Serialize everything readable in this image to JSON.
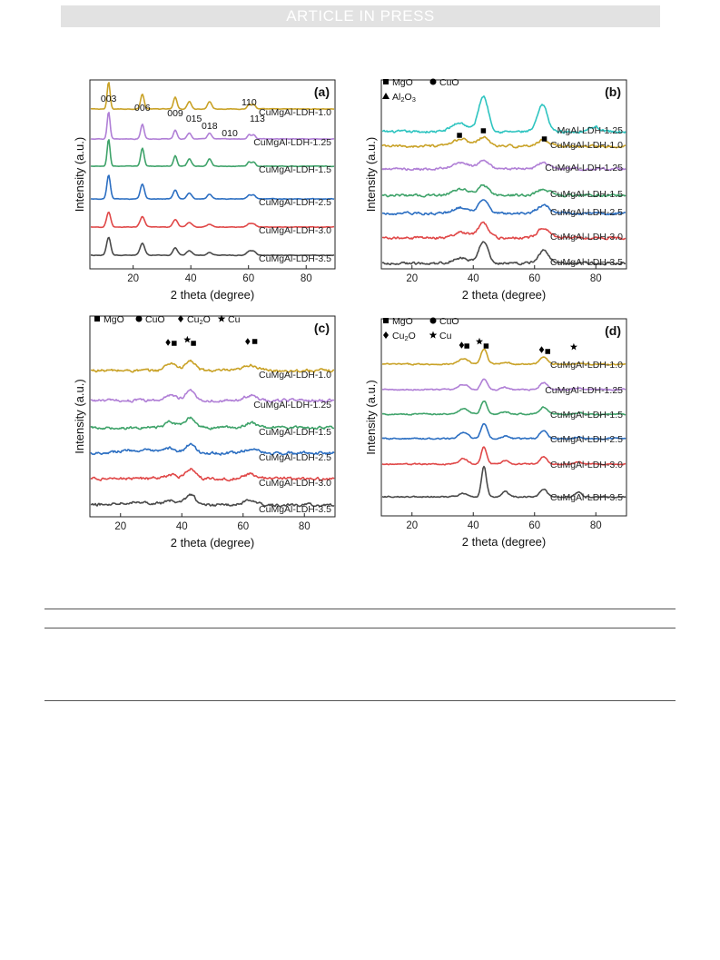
{
  "header": {
    "banner": "ARTICLE IN PRESS"
  },
  "colors": {
    "MgAl-LDH-1.25": "#2ec4c0",
    "CuMgAl-LDH-1.0": "#c9a227",
    "CuMgAl-LDH-1.25": "#b07fd6",
    "CuMgAl-LDH-1.5": "#3fa36a",
    "CuMgAl-LDH-2.5": "#2c6fc2",
    "CuMgAl-LDH-3.0": "#e04848",
    "CuMgAl-LDH-3.5": "#4a4a4a"
  },
  "chart_data": [
    {
      "type": "line",
      "panel_label": "(a)",
      "xlabel": "2 theta (degree)",
      "ylabel": "Intensity (a.u.)",
      "xlim": [
        5,
        90
      ],
      "xticks": [
        20,
        40,
        60,
        80
      ],
      "legend": [],
      "annotations": [
        {
          "text": "003",
          "x": 11.5
        },
        {
          "text": "006",
          "x": 23.2
        },
        {
          "text": "009",
          "x": 34.6
        },
        {
          "text": "015",
          "x": 39.5
        },
        {
          "text": "018",
          "x": 46.5
        },
        {
          "text": "010",
          "x": 53.5
        },
        {
          "text": "110",
          "x": 60.2
        },
        {
          "text": "113",
          "x": 61.8
        }
      ],
      "series": [
        {
          "name": "CuMgAl-LDH-1.0",
          "peaks": [
            [
              11.5,
              9,
              0.5
            ],
            [
              23.2,
              5,
              0.6
            ],
            [
              34.6,
              4,
              0.6
            ],
            [
              39.5,
              2.5,
              0.7
            ],
            [
              46.5,
              2.5,
              0.7
            ],
            [
              60.2,
              1.6,
              0.6
            ],
            [
              61.8,
              1.6,
              0.6
            ]
          ]
        },
        {
          "name": "CuMgAl-LDH-1.25",
          "peaks": [
            [
              11.5,
              9,
              0.5
            ],
            [
              23.2,
              5,
              0.6
            ],
            [
              34.6,
              3,
              0.6
            ],
            [
              39.5,
              2,
              0.7
            ],
            [
              46.5,
              2,
              0.7
            ],
            [
              60.2,
              1.4,
              0.6
            ],
            [
              61.8,
              1.4,
              0.6
            ]
          ]
        },
        {
          "name": "CuMgAl-LDH-1.5",
          "peaks": [
            [
              11.5,
              9,
              0.5
            ],
            [
              23.2,
              6,
              0.6
            ],
            [
              34.6,
              3.5,
              0.6
            ],
            [
              39.5,
              2.5,
              0.7
            ],
            [
              46.5,
              2.5,
              0.7
            ],
            [
              60.2,
              1.4,
              0.6
            ],
            [
              61.8,
              1.4,
              0.6
            ]
          ]
        },
        {
          "name": "CuMgAl-LDH-2.5",
          "peaks": [
            [
              11.5,
              8,
              0.6
            ],
            [
              23.2,
              5,
              0.7
            ],
            [
              34.6,
              3,
              0.7
            ],
            [
              39.5,
              2,
              0.8
            ],
            [
              46.5,
              1.5,
              0.8
            ],
            [
              60.2,
              1.2,
              0.7
            ],
            [
              61.8,
              1.2,
              0.7
            ]
          ]
        },
        {
          "name": "CuMgAl-LDH-3.0",
          "peaks": [
            [
              11.5,
              5,
              0.7
            ],
            [
              23.2,
              3.5,
              0.8
            ],
            [
              34.6,
              2.5,
              0.8
            ],
            [
              39.5,
              1.5,
              0.9
            ],
            [
              46.5,
              1,
              0.9
            ],
            [
              60.2,
              1,
              0.8
            ],
            [
              61.8,
              1,
              0.8
            ]
          ]
        },
        {
          "name": "CuMgAl-LDH-3.5",
          "peaks": [
            [
              11.5,
              6,
              0.7
            ],
            [
              23.2,
              4,
              0.8
            ],
            [
              34.6,
              2.5,
              0.8
            ],
            [
              39.5,
              1.5,
              0.9
            ],
            [
              46.5,
              1,
              0.9
            ],
            [
              60.2,
              1.2,
              0.8
            ],
            [
              61.8,
              1.2,
              0.8
            ]
          ]
        }
      ]
    },
    {
      "type": "line",
      "panel_label": "(b)",
      "xlabel": "2 theta (degree)",
      "ylabel": "Intensity (a.u.)",
      "xlim": [
        10,
        90
      ],
      "xticks": [
        20,
        40,
        60,
        80
      ],
      "legend": [
        {
          "symbol": "square",
          "label": "MgO"
        },
        {
          "symbol": "circle",
          "label": "CuO"
        },
        {
          "symbol": "triangle",
          "label": "Al2O3"
        }
      ],
      "markers": [
        {
          "symbol": "square",
          "x": 35.5
        },
        {
          "symbol": "square",
          "x": 43.3
        },
        {
          "symbol": "square",
          "x": 63.2
        }
      ],
      "series": [
        {
          "name": "MgAl-LDH-1.25",
          "peaks": [
            [
              35.5,
              1.5,
              2.5
            ],
            [
              43.3,
              6,
              1.6
            ],
            [
              62.6,
              4.5,
              1.6
            ],
            [
              79.5,
              0.8,
              2.0
            ]
          ]
        },
        {
          "name": "CuMgAl-LDH-1.0",
          "peaks": [
            [
              36,
              1.2,
              2.5
            ],
            [
              43.3,
              1.5,
              1.8
            ],
            [
              63,
              1.1,
              2.0
            ]
          ]
        },
        {
          "name": "CuMgAl-LDH-1.25",
          "peaks": [
            [
              36,
              1,
              2.5
            ],
            [
              43.3,
              1.4,
              1.8
            ],
            [
              63,
              1.0,
              2.0
            ]
          ]
        },
        {
          "name": "CuMgAl-LDH-1.5",
          "peaks": [
            [
              36,
              1,
              2.5
            ],
            [
              43.3,
              1.6,
              1.8
            ],
            [
              63,
              1.1,
              2.0
            ]
          ]
        },
        {
          "name": "CuMgAl-LDH-2.5",
          "peaks": [
            [
              36,
              1,
              2.5
            ],
            [
              43.3,
              2.2,
              1.7
            ],
            [
              63,
              1.5,
              1.9
            ]
          ]
        },
        {
          "name": "CuMgAl-LDH-3.0",
          "peaks": [
            [
              36,
              1,
              2.5
            ],
            [
              43.3,
              2.5,
              1.7
            ],
            [
              63,
              1.8,
              1.9
            ]
          ]
        },
        {
          "name": "CuMgAl-LDH-3.5",
          "peaks": [
            [
              36,
              1,
              2.5
            ],
            [
              43.3,
              3.5,
              1.6
            ],
            [
              63,
              2.2,
              1.8
            ]
          ]
        }
      ]
    },
    {
      "type": "line",
      "panel_label": "(c)",
      "xlabel": "2 theta (degree)",
      "ylabel": "Intensity (a.u.)",
      "xlim": [
        10,
        90
      ],
      "xticks": [
        20,
        40,
        60,
        80
      ],
      "legend": [
        {
          "symbol": "square",
          "label": "MgO"
        },
        {
          "symbol": "circle",
          "label": "CuO"
        },
        {
          "symbol": "diamond",
          "label": "Cu2O"
        },
        {
          "symbol": "star",
          "label": "Cu"
        }
      ],
      "markers": [
        {
          "symbol": "diamond",
          "x": 35.5
        },
        {
          "symbol": "square",
          "x": 37.5
        },
        {
          "symbol": "star",
          "x": 41.8
        },
        {
          "symbol": "square",
          "x": 43.8
        },
        {
          "symbol": "diamond",
          "x": 61.5
        },
        {
          "symbol": "square",
          "x": 63.8
        }
      ],
      "series": [
        {
          "name": "CuMgAl-LDH-1.0",
          "peaks": [
            [
              36.5,
              2,
              1.8
            ],
            [
              42.8,
              2.5,
              1.6
            ],
            [
              62.5,
              1.5,
              2.0
            ]
          ]
        },
        {
          "name": "CuMgAl-LDH-1.25",
          "peaks": [
            [
              36.5,
              1.5,
              1.8
            ],
            [
              42.8,
              2.5,
              1.6
            ],
            [
              62.5,
              1.3,
              2.0
            ]
          ]
        },
        {
          "name": "CuMgAl-LDH-1.5",
          "peaks": [
            [
              36.5,
              1.5,
              1.8
            ],
            [
              42.8,
              2.5,
              1.6
            ],
            [
              62.5,
              1.3,
              2.0
            ]
          ]
        },
        {
          "name": "CuMgAl-LDH-2.5",
          "peaks": [
            [
              36.5,
              1.2,
              1.8
            ],
            [
              42.8,
              2.2,
              1.6
            ],
            [
              62.5,
              1.1,
              2.0
            ],
            [
              25,
              0.8,
              6
            ]
          ]
        },
        {
          "name": "CuMgAl-LDH-3.0",
          "peaks": [
            [
              36.5,
              1,
              1.8
            ],
            [
              42.8,
              2.5,
              1.6
            ],
            [
              62.5,
              1.2,
              2.0
            ]
          ]
        },
        {
          "name": "CuMgAl-LDH-3.5",
          "peaks": [
            [
              36.5,
              1,
              1.8
            ],
            [
              42.8,
              2.8,
              1.6
            ],
            [
              62.5,
              1.4,
              2.0
            ],
            [
              25,
              0.8,
              6
            ]
          ]
        }
      ]
    },
    {
      "type": "line",
      "panel_label": "(d)",
      "xlabel": "2 theta (degree)",
      "ylabel": "Intensity (a.u.)",
      "xlim": [
        10,
        90
      ],
      "xticks": [
        20,
        40,
        60,
        80
      ],
      "legend": [
        {
          "symbol": "square",
          "label": "MgO"
        },
        {
          "symbol": "circle",
          "label": "CuO"
        },
        {
          "symbol": "diamond",
          "label": "Cu2O"
        },
        {
          "symbol": "star",
          "label": "Cu"
        }
      ],
      "markers": [
        {
          "symbol": "diamond",
          "x": 36.2
        },
        {
          "symbol": "square",
          "x": 37.9
        },
        {
          "symbol": "star",
          "x": 42.0
        },
        {
          "symbol": "square",
          "x": 44.2
        },
        {
          "symbol": "diamond",
          "x": 62.3
        },
        {
          "symbol": "square",
          "x": 64.3
        },
        {
          "symbol": "star",
          "x": 72.8
        }
      ],
      "series": [
        {
          "name": "CuMgAl-LDH-1.0",
          "peaks": [
            [
              36.8,
              1.2,
              1.6
            ],
            [
              43.5,
              3.5,
              1.0
            ],
            [
              50.5,
              0.5,
              1.2
            ],
            [
              62.9,
              1.8,
              1.2
            ],
            [
              74.3,
              0.3,
              1.2
            ]
          ]
        },
        {
          "name": "CuMgAl-LDH-1.25",
          "peaks": [
            [
              36.8,
              1.2,
              1.6
            ],
            [
              43.5,
              2.5,
              1.0
            ],
            [
              50.5,
              0.5,
              1.2
            ],
            [
              62.9,
              1.6,
              1.2
            ],
            [
              74.3,
              0.3,
              1.2
            ]
          ]
        },
        {
          "name": "CuMgAl-LDH-1.5",
          "peaks": [
            [
              36.8,
              1.2,
              1.6
            ],
            [
              43.5,
              3.0,
              1.0
            ],
            [
              50.5,
              0.5,
              1.2
            ],
            [
              62.9,
              1.6,
              1.2
            ],
            [
              74.3,
              0.3,
              1.2
            ]
          ]
        },
        {
          "name": "CuMgAl-LDH-2.5",
          "peaks": [
            [
              36.8,
              1.5,
              1.4
            ],
            [
              43.5,
              3.5,
              1.0
            ],
            [
              50.5,
              0.6,
              1.2
            ],
            [
              62.9,
              1.8,
              1.2
            ],
            [
              74.3,
              0.4,
              1.2
            ]
          ]
        },
        {
          "name": "CuMgAl-LDH-3.0",
          "peaks": [
            [
              36.8,
              1.2,
              1.4
            ],
            [
              43.5,
              4.0,
              0.9
            ],
            [
              50.5,
              0.7,
              1.1
            ],
            [
              62.9,
              1.6,
              1.2
            ],
            [
              74.3,
              0.4,
              1.2
            ]
          ]
        },
        {
          "name": "CuMgAl-LDH-3.5",
          "peaks": [
            [
              36.8,
              0.8,
              1.4
            ],
            [
              43.5,
              7.0,
              0.8
            ],
            [
              50.5,
              1.2,
              1.0
            ],
            [
              62.9,
              1.8,
              1.1
            ],
            [
              74.3,
              1.0,
              1.1
            ]
          ]
        }
      ]
    }
  ]
}
